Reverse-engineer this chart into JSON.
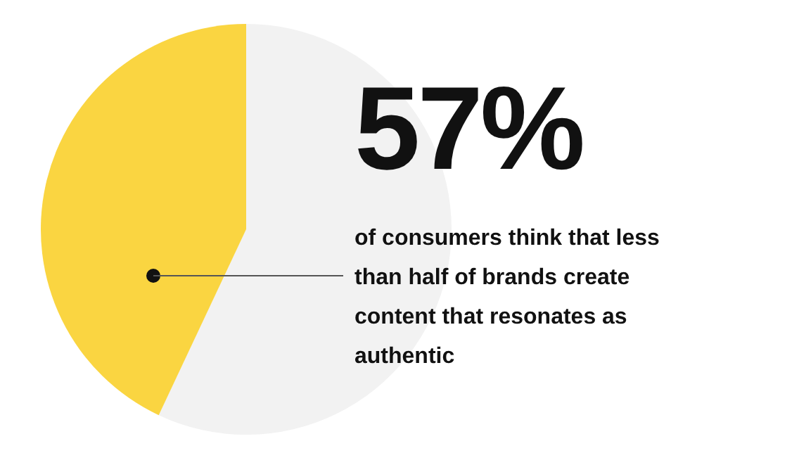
{
  "chart_data": {
    "type": "pie",
    "categories": [
      null,
      null
    ],
    "values": [
      57,
      43
    ],
    "colors": [
      "#f2f2f2",
      "#fad541"
    ],
    "legend": false,
    "annotations": [
      "57%",
      "of consumers think that less than half of brands create content that resonates as authentic"
    ]
  }
}
